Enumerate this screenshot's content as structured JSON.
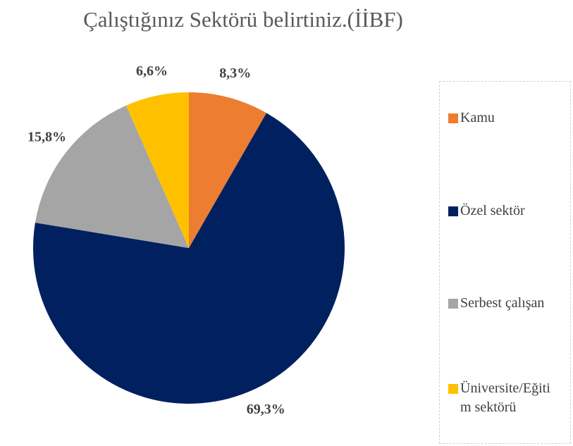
{
  "chart_data": {
    "type": "pie",
    "title": "Çalıştığınız Sektörü belirtiniz.(İİBF)",
    "categories": [
      "Kamu",
      "Özel sektör",
      "Serbest çalışan",
      "Üniversite/Eğitim sektörü"
    ],
    "values": [
      8.3,
      69.3,
      15.8,
      6.6
    ],
    "value_labels": [
      "8,3%",
      "69,3%",
      "15,8%",
      "6,6%"
    ],
    "colors": [
      "#ed7d31",
      "#002060",
      "#a5a5a5",
      "#ffc000"
    ],
    "legend": "right"
  }
}
